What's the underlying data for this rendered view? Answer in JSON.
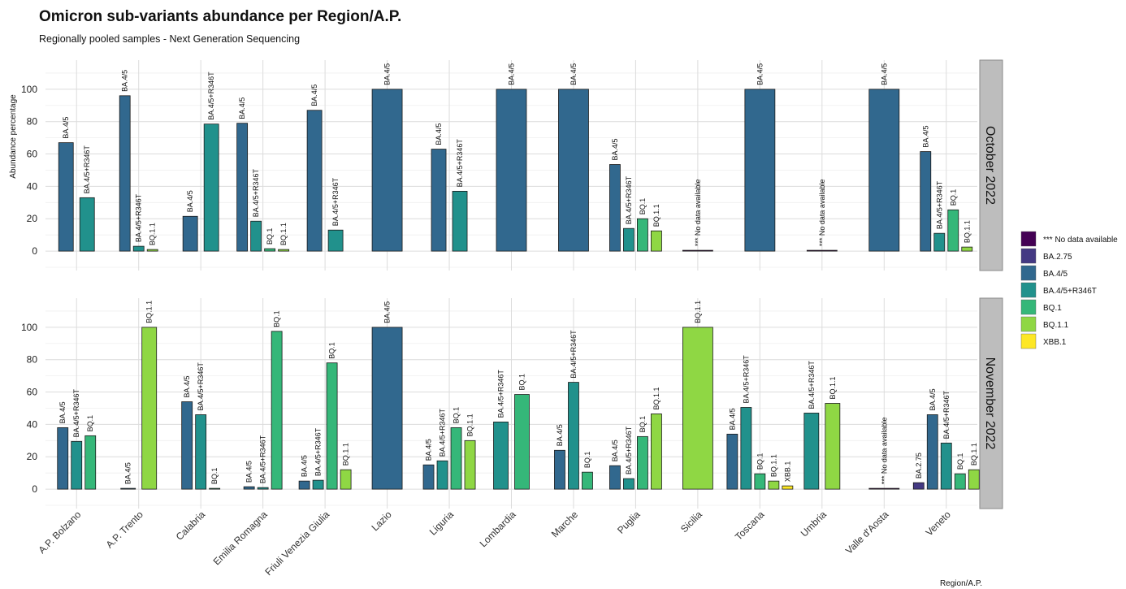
{
  "chart_data": {
    "type": "bar",
    "title": "Omicron sub-variants abundance per Region/A.P.",
    "subtitle": "Regionally pooled samples - Next Generation Sequencing",
    "ylabel": "Abundance percentage",
    "xlabel": "Region/A.P.",
    "ylim": [
      -12,
      118
    ],
    "yticks": [
      0,
      20,
      40,
      60,
      80,
      100
    ],
    "grid": true,
    "legend_position": "right",
    "categories": [
      "A.P. Bolzano",
      "A.P. Trento",
      "Calabria",
      "Emilia Romagna",
      "Friuli Venezia Giulia",
      "Lazio",
      "Liguria",
      "Lombardia",
      "Marche",
      "Puglia",
      "Sicilia",
      "Toscana",
      "Umbria",
      "Valle d'Aosta",
      "Veneto"
    ],
    "legend": [
      {
        "name": "*** No data available",
        "color": "#440154"
      },
      {
        "name": "BA.2.75",
        "color": "#443983"
      },
      {
        "name": "BA.4/5",
        "color": "#31688e"
      },
      {
        "name": "BA.4/5+R346T",
        "color": "#21918c"
      },
      {
        "name": "BQ.1",
        "color": "#35b779"
      },
      {
        "name": "BQ.1.1",
        "color": "#8fd744"
      },
      {
        "name": "XBB.1",
        "color": "#fde725"
      }
    ],
    "panels": [
      {
        "label": "October 2022",
        "groups": [
          {
            "category": "A.P. Bolzano",
            "bars": [
              {
                "variant": "BA.4/5",
                "value": 67
              },
              {
                "variant": "BA.4/5+R346T",
                "value": 33
              }
            ]
          },
          {
            "category": "A.P. Trento",
            "bars": [
              {
                "variant": "BA.4/5",
                "value": 96
              },
              {
                "variant": "BA.4/5+R346T",
                "value": 3
              },
              {
                "variant": "BQ.1.1",
                "value": 1
              }
            ]
          },
          {
            "category": "Calabria",
            "bars": [
              {
                "variant": "BA.4/5",
                "value": 21.5
              },
              {
                "variant": "BA.4/5+R346T",
                "value": 78.5
              }
            ]
          },
          {
            "category": "Emilia Romagna",
            "bars": [
              {
                "variant": "BA.4/5",
                "value": 79
              },
              {
                "variant": "BA.4/5+R346T",
                "value": 18.5
              },
              {
                "variant": "BQ.1",
                "value": 1.5
              },
              {
                "variant": "BQ.1.1",
                "value": 1
              }
            ]
          },
          {
            "category": "Friuli Venezia Giulia",
            "bars": [
              {
                "variant": "BA.4/5",
                "value": 87
              },
              {
                "variant": "BA.4/5+R346T",
                "value": 13
              }
            ]
          },
          {
            "category": "Lazio",
            "bars": [
              {
                "variant": "BA.4/5",
                "value": 100
              }
            ]
          },
          {
            "category": "Liguria",
            "bars": [
              {
                "variant": "BA.4/5",
                "value": 63
              },
              {
                "variant": "BA.4/5+R346T",
                "value": 37
              }
            ]
          },
          {
            "category": "Lombardia",
            "bars": [
              {
                "variant": "BA.4/5",
                "value": 100
              }
            ]
          },
          {
            "category": "Marche",
            "bars": [
              {
                "variant": "BA.4/5",
                "value": 100
              }
            ]
          },
          {
            "category": "Puglia",
            "bars": [
              {
                "variant": "BA.4/5",
                "value": 53.5
              },
              {
                "variant": "BA.4/5+R346T",
                "value": 14
              },
              {
                "variant": "BQ.1",
                "value": 20
              },
              {
                "variant": "BQ.1.1",
                "value": 12.5
              }
            ]
          },
          {
            "category": "Sicilia",
            "bars": [
              {
                "variant": "*** No data available",
                "value": 0
              }
            ]
          },
          {
            "category": "Toscana",
            "bars": [
              {
                "variant": "BA.4/5",
                "value": 100
              }
            ]
          },
          {
            "category": "Umbria",
            "bars": [
              {
                "variant": "*** No data available",
                "value": 0
              }
            ]
          },
          {
            "category": "Valle d'Aosta",
            "bars": [
              {
                "variant": "BA.4/5",
                "value": 100
              }
            ]
          },
          {
            "category": "Veneto",
            "bars": [
              {
                "variant": "BA.4/5",
                "value": 61.5
              },
              {
                "variant": "BA.4/5+R346T",
                "value": 11
              },
              {
                "variant": "BQ.1",
                "value": 25.5
              },
              {
                "variant": "BQ.1.1",
                "value": 2.5
              }
            ]
          }
        ]
      },
      {
        "label": "November 2022",
        "groups": [
          {
            "category": "A.P. Bolzano",
            "bars": [
              {
                "variant": "BA.4/5",
                "value": 38
              },
              {
                "variant": "BA.4/5+R346T",
                "value": 29.5
              },
              {
                "variant": "BQ.1",
                "value": 33
              }
            ]
          },
          {
            "category": "A.P. Trento",
            "bars": [
              {
                "variant": "BA.4/5",
                "value": 0
              },
              {
                "variant": "BQ.1.1",
                "value": 100
              }
            ]
          },
          {
            "category": "Calabria",
            "bars": [
              {
                "variant": "BA.4/5",
                "value": 54
              },
              {
                "variant": "BA.4/5+R346T",
                "value": 46
              },
              {
                "variant": "BQ.1",
                "value": 0
              }
            ]
          },
          {
            "category": "Emilia Romagna",
            "bars": [
              {
                "variant": "BA.4/5",
                "value": 1.5
              },
              {
                "variant": "BA.4/5+R346T",
                "value": 1
              },
              {
                "variant": "BQ.1",
                "value": 97.5
              }
            ]
          },
          {
            "category": "Friuli Venezia Giulia",
            "bars": [
              {
                "variant": "BA.4/5",
                "value": 5
              },
              {
                "variant": "BA.4/5+R346T",
                "value": 5.5
              },
              {
                "variant": "BQ.1",
                "value": 78
              },
              {
                "variant": "BQ.1.1",
                "value": 12
              }
            ]
          },
          {
            "category": "Lazio",
            "bars": [
              {
                "variant": "BA.4/5",
                "value": 100
              }
            ]
          },
          {
            "category": "Liguria",
            "bars": [
              {
                "variant": "BA.4/5",
                "value": 15
              },
              {
                "variant": "BA.4/5+R346T",
                "value": 17.5
              },
              {
                "variant": "BQ.1",
                "value": 38
              },
              {
                "variant": "BQ.1.1",
                "value": 30
              }
            ]
          },
          {
            "category": "Lombardia",
            "bars": [
              {
                "variant": "BA.4/5+R346T",
                "value": 41.5
              },
              {
                "variant": "BQ.1",
                "value": 58.5
              }
            ]
          },
          {
            "category": "Marche",
            "bars": [
              {
                "variant": "BA.4/5",
                "value": 24
              },
              {
                "variant": "BA.4/5+R346T",
                "value": 66
              },
              {
                "variant": "BQ.1",
                "value": 10.5
              }
            ]
          },
          {
            "category": "Puglia",
            "bars": [
              {
                "variant": "BA.4/5",
                "value": 14.5
              },
              {
                "variant": "BA.4/5+R346T",
                "value": 6.5
              },
              {
                "variant": "BQ.1",
                "value": 32.5
              },
              {
                "variant": "BQ.1.1",
                "value": 46.5
              }
            ]
          },
          {
            "category": "Sicilia",
            "bars": [
              {
                "variant": "BQ.1.1",
                "value": 100
              }
            ]
          },
          {
            "category": "Toscana",
            "bars": [
              {
                "variant": "BA.4/5",
                "value": 34
              },
              {
                "variant": "BA.4/5+R346T",
                "value": 50.5
              },
              {
                "variant": "BQ.1",
                "value": 9.5
              },
              {
                "variant": "BQ.1.1",
                "value": 5
              },
              {
                "variant": "XBB.1",
                "value": 2
              }
            ]
          },
          {
            "category": "Umbria",
            "bars": [
              {
                "variant": "BA.4/5+R346T",
                "value": 47
              },
              {
                "variant": "BQ.1.1",
                "value": 53
              }
            ]
          },
          {
            "category": "Valle d'Aosta",
            "bars": [
              {
                "variant": "*** No data available",
                "value": 0
              }
            ]
          },
          {
            "category": "Veneto",
            "bars": [
              {
                "variant": "BA.2.75",
                "value": 4
              },
              {
                "variant": "BA.4/5",
                "value": 46
              },
              {
                "variant": "BA.4/5+R346T",
                "value": 28.5
              },
              {
                "variant": "BQ.1",
                "value": 9.5
              },
              {
                "variant": "BQ.1.1",
                "value": 12
              }
            ]
          }
        ]
      }
    ]
  }
}
